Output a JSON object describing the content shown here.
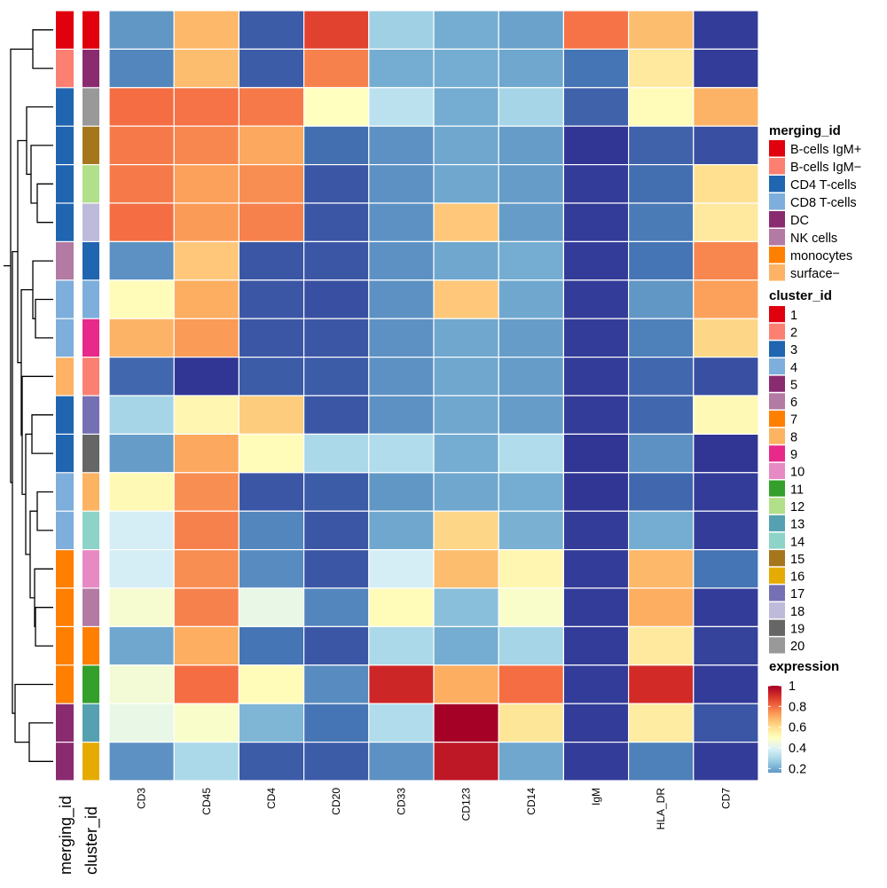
{
  "chart_data": {
    "type": "heatmap",
    "title": "",
    "columns": [
      "CD3",
      "CD45",
      "CD4",
      "CD20",
      "CD33",
      "CD123",
      "CD14",
      "IgM",
      "HLA_DR",
      "CD7"
    ],
    "rows": [
      {
        "merging_id": "B-cells IgM+",
        "cluster_id": "1",
        "values": [
          0.16,
          0.68,
          0.06,
          0.87,
          0.28,
          0.2,
          0.18,
          0.79,
          0.67,
          0.01
        ]
      },
      {
        "merging_id": "B-cells IgM-",
        "cluster_id": "5",
        "values": [
          0.13,
          0.67,
          0.06,
          0.77,
          0.2,
          0.2,
          0.19,
          0.1,
          0.57,
          0.01
        ]
      },
      {
        "merging_id": "CD4 T-cells",
        "cluster_id": "20",
        "values": [
          0.8,
          0.79,
          0.78,
          0.5,
          0.33,
          0.2,
          0.29,
          0.07,
          0.51,
          0.69
        ]
      },
      {
        "merging_id": "CD4 T-cells",
        "cluster_id": "15",
        "values": [
          0.78,
          0.76,
          0.71,
          0.09,
          0.15,
          0.19,
          0.17,
          0.0,
          0.07,
          0.04
        ]
      },
      {
        "merging_id": "CD4 T-cells",
        "cluster_id": "12",
        "values": [
          0.78,
          0.72,
          0.75,
          0.05,
          0.15,
          0.19,
          0.17,
          0.01,
          0.09,
          0.6
        ]
      },
      {
        "merging_id": "CD4 T-cells",
        "cluster_id": "18",
        "values": [
          0.8,
          0.73,
          0.77,
          0.05,
          0.15,
          0.65,
          0.17,
          0.01,
          0.11,
          0.57
        ]
      },
      {
        "merging_id": "NK cells",
        "cluster_id": "3",
        "values": [
          0.15,
          0.65,
          0.05,
          0.05,
          0.15,
          0.19,
          0.2,
          0.01,
          0.1,
          0.76
        ]
      },
      {
        "merging_id": "CD8 T-cells",
        "cluster_id": "4",
        "values": [
          0.51,
          0.7,
          0.05,
          0.04,
          0.15,
          0.65,
          0.19,
          0.01,
          0.16,
          0.72
        ]
      },
      {
        "merging_id": "CD8 T-cells",
        "cluster_id": "9",
        "values": [
          0.69,
          0.73,
          0.05,
          0.05,
          0.15,
          0.19,
          0.17,
          0.01,
          0.12,
          0.62
        ]
      },
      {
        "merging_id": "surface-",
        "cluster_id": "2",
        "values": [
          0.08,
          0.0,
          0.06,
          0.06,
          0.15,
          0.19,
          0.17,
          0.01,
          0.08,
          0.04
        ]
      },
      {
        "merging_id": "CD4 T-cells",
        "cluster_id": "17",
        "values": [
          0.29,
          0.53,
          0.64,
          0.05,
          0.15,
          0.19,
          0.17,
          0.01,
          0.08,
          0.52
        ]
      },
      {
        "merging_id": "CD4 T-cells",
        "cluster_id": "19",
        "values": [
          0.17,
          0.71,
          0.51,
          0.3,
          0.31,
          0.2,
          0.31,
          0.0,
          0.15,
          0.0
        ]
      },
      {
        "merging_id": "CD8 T-cells",
        "cluster_id": "8",
        "values": [
          0.52,
          0.75,
          0.05,
          0.06,
          0.16,
          0.19,
          0.2,
          0.0,
          0.08,
          0.01
        ]
      },
      {
        "merging_id": "CD8 T-cells",
        "cluster_id": "14",
        "values": [
          0.38,
          0.77,
          0.13,
          0.05,
          0.19,
          0.62,
          0.21,
          0.01,
          0.2,
          0.01
        ]
      },
      {
        "merging_id": "monocytes",
        "cluster_id": "10",
        "values": [
          0.38,
          0.75,
          0.14,
          0.05,
          0.38,
          0.67,
          0.53,
          0.01,
          0.68,
          0.1
        ]
      },
      {
        "merging_id": "monocytes",
        "cluster_id": "6",
        "values": [
          0.47,
          0.77,
          0.43,
          0.13,
          0.51,
          0.24,
          0.48,
          0.01,
          0.7,
          0.01
        ]
      },
      {
        "merging_id": "monocytes",
        "cluster_id": "7",
        "values": [
          0.19,
          0.7,
          0.1,
          0.05,
          0.3,
          0.2,
          0.29,
          0.01,
          0.57,
          0.02
        ]
      },
      {
        "merging_id": "monocytes",
        "cluster_id": "11",
        "values": [
          0.46,
          0.8,
          0.51,
          0.14,
          0.92,
          0.7,
          0.8,
          0.01,
          0.91,
          0.01
        ]
      },
      {
        "merging_id": "DC",
        "cluster_id": "13",
        "values": [
          0.43,
          0.48,
          0.22,
          0.1,
          0.31,
          1.0,
          0.58,
          0.01,
          0.56,
          0.05
        ]
      },
      {
        "merging_id": "DC",
        "cluster_id": "16",
        "values": [
          0.15,
          0.3,
          0.06,
          0.06,
          0.15,
          0.95,
          0.19,
          0.01,
          0.12,
          0.01
        ]
      }
    ],
    "row_annotation_labels": [
      "merging_id",
      "cluster_id"
    ],
    "color_scale": {
      "name": "expression",
      "palette": [
        "#313695",
        "#4575b4",
        "#74add1",
        "#abd9e9",
        "#e0f3f8",
        "#ffffbf",
        "#fee090",
        "#fdae61",
        "#f46d43",
        "#d73027",
        "#a50026"
      ],
      "domain": [
        0,
        1
      ],
      "ticks": [
        "1",
        "0.8",
        "0.6",
        "0.4",
        "0.2"
      ]
    },
    "legends": {
      "merging_id": {
        "title": "merging_id",
        "items": [
          {
            "label": "B-cells IgM+",
            "color": "#e0000e"
          },
          {
            "label": "B-cells IgM−",
            "color": "#fb8072"
          },
          {
            "label": "CD4 T-cells",
            "color": "#1f65b0"
          },
          {
            "label": "CD8 T-cells",
            "color": "#7eaedb"
          },
          {
            "label": "DC",
            "color": "#8a2b70"
          },
          {
            "label": "NK cells",
            "color": "#b37aa4"
          },
          {
            "label": "monocytes",
            "color": "#ff7f00"
          },
          {
            "label": "surface−",
            "color": "#feb265"
          }
        ]
      },
      "cluster_id": {
        "title": "cluster_id",
        "items": [
          {
            "label": "1",
            "color": "#e0000e"
          },
          {
            "label": "2",
            "color": "#fb8072"
          },
          {
            "label": "3",
            "color": "#1f65b0"
          },
          {
            "label": "4",
            "color": "#7eaedb"
          },
          {
            "label": "5",
            "color": "#8a2b70"
          },
          {
            "label": "6",
            "color": "#b37aa4"
          },
          {
            "label": "7",
            "color": "#ff7f00"
          },
          {
            "label": "8",
            "color": "#fdb462"
          },
          {
            "label": "9",
            "color": "#e7298a"
          },
          {
            "label": "10",
            "color": "#e78ac3"
          },
          {
            "label": "11",
            "color": "#33a02c"
          },
          {
            "label": "12",
            "color": "#b2df8a"
          },
          {
            "label": "13",
            "color": "#55a1b1"
          },
          {
            "label": "14",
            "color": "#8dd3c7"
          },
          {
            "label": "15",
            "color": "#a6761d"
          },
          {
            "label": "16",
            "color": "#e6ab02"
          },
          {
            "label": "17",
            "color": "#7570b3"
          },
          {
            "label": "18",
            "color": "#bebada"
          },
          {
            "label": "19",
            "color": "#666666"
          },
          {
            "label": "20",
            "color": "#999999"
          }
        ]
      }
    }
  }
}
